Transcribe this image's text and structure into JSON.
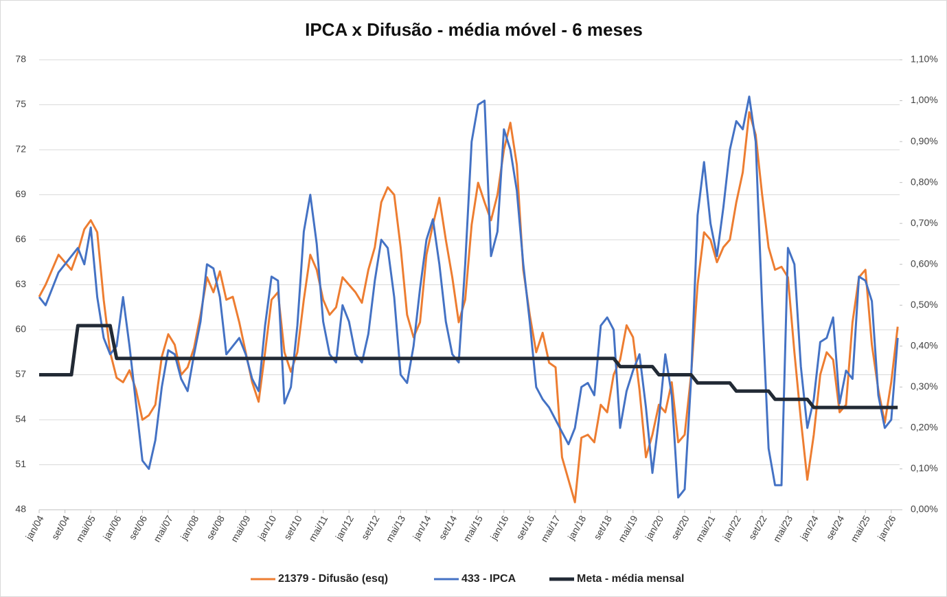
{
  "chart_data": {
    "type": "line",
    "title": "IPCA x Difusão - média móvel - 6 meses",
    "categories": [
      "jan/04",
      null,
      null,
      null,
      "set/04",
      null,
      null,
      null,
      "mai/05",
      null,
      null,
      null,
      "jan/06",
      null,
      null,
      null,
      "set/06",
      null,
      null,
      null,
      "mai/07",
      null,
      null,
      null,
      "jan/08",
      null,
      null,
      null,
      "set/08",
      null,
      null,
      null,
      "mai/09",
      null,
      null,
      null,
      "jan/10",
      null,
      null,
      null,
      "set/10",
      null,
      null,
      null,
      "mai/11",
      null,
      null,
      null,
      "jan/12",
      null,
      null,
      null,
      "set/12",
      null,
      null,
      null,
      "mai/13",
      null,
      null,
      null,
      "jan/14",
      null,
      null,
      null,
      "set/14",
      null,
      null,
      null,
      "mai/15",
      null,
      null,
      null,
      "jan/16",
      null,
      null,
      null,
      "set/16",
      null,
      null,
      null,
      "mai/17",
      null,
      null,
      null,
      "jan/18",
      null,
      null,
      null,
      "set/18",
      null,
      null,
      null,
      "mai/19",
      null,
      null,
      null,
      "jan/20",
      null,
      null,
      null,
      "set/20",
      null,
      null,
      null,
      "mai/21",
      null,
      null,
      null,
      "jan/22",
      null,
      null,
      null,
      "set/22",
      null,
      null,
      null,
      "mai/23",
      null,
      null,
      null,
      "jan/24",
      null,
      null,
      null,
      "set/24",
      null,
      null,
      null,
      "mai/25",
      null,
      null,
      null,
      "jan/26",
      null
    ],
    "series": [
      {
        "name": "21379 - Difusão (esq)",
        "color": "#ed7d31",
        "axis": "y",
        "width": 3,
        "values": [
          62.2,
          63.0,
          64.0,
          65.0,
          64.5,
          64.0,
          65.2,
          66.7,
          67.3,
          66.5,
          62.0,
          58.5,
          56.8,
          56.5,
          57.3,
          56.0,
          54.0,
          54.3,
          55.0,
          58.2,
          59.7,
          59.0,
          57.0,
          57.5,
          58.8,
          61.0,
          63.5,
          62.5,
          63.9,
          62.0,
          62.2,
          60.5,
          58.5,
          56.5,
          55.2,
          58.5,
          62.0,
          62.5,
          58.5,
          57.2,
          58.5,
          62.0,
          65.0,
          64.0,
          62.0,
          61.0,
          61.5,
          63.5,
          63.0,
          62.5,
          61.8,
          64.0,
          65.5,
          68.5,
          69.5,
          69.0,
          65.5,
          61.0,
          59.5,
          60.5,
          65.0,
          67.0,
          68.8,
          66.0,
          63.5,
          60.5,
          62.0,
          67.0,
          69.8,
          68.5,
          67.3,
          69.0,
          72.0,
          73.8,
          71.0,
          64.0,
          61.0,
          58.5,
          59.8,
          57.8,
          57.5,
          51.5,
          50.0,
          48.5,
          52.8,
          53.0,
          52.5,
          55.0,
          54.5,
          57.0,
          58.0,
          60.3,
          59.5,
          56.0,
          51.5,
          53.0,
          55.0,
          54.5,
          56.5,
          52.5,
          53.0,
          57.0,
          63.0,
          66.5,
          66.0,
          64.5,
          65.5,
          66.0,
          68.5,
          70.5,
          74.5,
          73.0,
          69.0,
          65.5,
          64.0,
          64.2,
          63.5,
          58.5,
          54.0,
          50.0,
          53.0,
          57.0,
          58.5,
          58.0,
          54.5,
          55.0,
          60.5,
          63.5,
          64.0,
          59.0,
          56.0,
          53.8,
          56.5,
          60.2
        ]
      },
      {
        "name": "433 - IPCA",
        "color": "#4472c4",
        "axis": "y2",
        "width": 3,
        "values": [
          0.52,
          0.5,
          0.54,
          0.58,
          0.6,
          0.62,
          0.64,
          0.6,
          0.69,
          0.52,
          0.42,
          0.38,
          0.4,
          0.52,
          0.4,
          0.26,
          0.12,
          0.1,
          0.17,
          0.3,
          0.39,
          0.38,
          0.32,
          0.29,
          0.38,
          0.46,
          0.6,
          0.59,
          0.52,
          0.38,
          0.4,
          0.42,
          0.38,
          0.32,
          0.29,
          0.45,
          0.57,
          0.56,
          0.26,
          0.3,
          0.45,
          0.68,
          0.77,
          0.65,
          0.46,
          0.38,
          0.36,
          0.5,
          0.46,
          0.38,
          0.36,
          0.43,
          0.56,
          0.66,
          0.64,
          0.52,
          0.33,
          0.31,
          0.4,
          0.54,
          0.66,
          0.71,
          0.6,
          0.46,
          0.38,
          0.36,
          0.6,
          0.9,
          0.99,
          1.0,
          0.62,
          0.68,
          0.93,
          0.88,
          0.78,
          0.6,
          0.46,
          0.3,
          0.27,
          0.25,
          0.22,
          0.19,
          0.16,
          0.2,
          0.3,
          0.31,
          0.28,
          0.45,
          0.47,
          0.44,
          0.2,
          0.29,
          0.34,
          0.38,
          0.25,
          0.09,
          0.22,
          0.38,
          0.28,
          0.03,
          0.05,
          0.32,
          0.72,
          0.85,
          0.7,
          0.62,
          0.74,
          0.88,
          0.95,
          0.93,
          1.01,
          0.9,
          0.5,
          0.15,
          0.06,
          0.06,
          0.64,
          0.6,
          0.35,
          0.2,
          0.27,
          0.41,
          0.42,
          0.47,
          0.26,
          0.34,
          0.32,
          0.57,
          0.56,
          0.51,
          0.28,
          0.2,
          0.22,
          0.42
        ]
      },
      {
        "name": "Meta - média mensal",
        "color": "#222a35",
        "axis": "y2",
        "width": 5,
        "values": [
          0.33,
          0.33,
          0.33,
          0.33,
          0.33,
          0.33,
          0.45,
          0.45,
          0.45,
          0.45,
          0.45,
          0.45,
          0.37,
          0.37,
          0.37,
          0.37,
          0.37,
          0.37,
          0.37,
          0.37,
          0.37,
          0.37,
          0.37,
          0.37,
          0.37,
          0.37,
          0.37,
          0.37,
          0.37,
          0.37,
          0.37,
          0.37,
          0.37,
          0.37,
          0.37,
          0.37,
          0.37,
          0.37,
          0.37,
          0.37,
          0.37,
          0.37,
          0.37,
          0.37,
          0.37,
          0.37,
          0.37,
          0.37,
          0.37,
          0.37,
          0.37,
          0.37,
          0.37,
          0.37,
          0.37,
          0.37,
          0.37,
          0.37,
          0.37,
          0.37,
          0.37,
          0.37,
          0.37,
          0.37,
          0.37,
          0.37,
          0.37,
          0.37,
          0.37,
          0.37,
          0.37,
          0.37,
          0.37,
          0.37,
          0.37,
          0.37,
          0.37,
          0.37,
          0.37,
          0.37,
          0.37,
          0.37,
          0.37,
          0.37,
          0.37,
          0.37,
          0.37,
          0.37,
          0.37,
          0.37,
          0.35,
          0.35,
          0.35,
          0.35,
          0.35,
          0.35,
          0.33,
          0.33,
          0.33,
          0.33,
          0.33,
          0.33,
          0.31,
          0.31,
          0.31,
          0.31,
          0.31,
          0.31,
          0.29,
          0.29,
          0.29,
          0.29,
          0.29,
          0.29,
          0.27,
          0.27,
          0.27,
          0.27,
          0.27,
          0.27,
          0.25,
          0.25,
          0.25,
          0.25,
          0.25,
          0.25,
          0.25,
          0.25,
          0.25,
          0.25,
          0.25,
          0.25,
          0.25,
          0.25
        ]
      }
    ],
    "ylim": [
      48,
      78
    ],
    "yticks": [
      48,
      51,
      54,
      57,
      60,
      63,
      66,
      69,
      72,
      75,
      78
    ],
    "y2lim": [
      0,
      1.1
    ],
    "y2ticks": [
      {
        "value": 0,
        "label": "0,00%"
      },
      {
        "value": 0.1,
        "label": "0,10%"
      },
      {
        "value": 0.2,
        "label": "0,20%"
      },
      {
        "value": 0.3,
        "label": "0,30%"
      },
      {
        "value": 0.4,
        "label": "0,40%"
      },
      {
        "value": 0.5,
        "label": "0,50%"
      },
      {
        "value": 0.6,
        "label": "0,60%"
      },
      {
        "value": 0.7,
        "label": "0,70%"
      },
      {
        "value": 0.8,
        "label": "0,80%"
      },
      {
        "value": 0.9,
        "label": "0,90%"
      },
      {
        "value": 1.0,
        "label": "1,00%"
      },
      {
        "value": 1.1,
        "label": "1,10%"
      }
    ],
    "grid": true,
    "legend": "bottom"
  }
}
